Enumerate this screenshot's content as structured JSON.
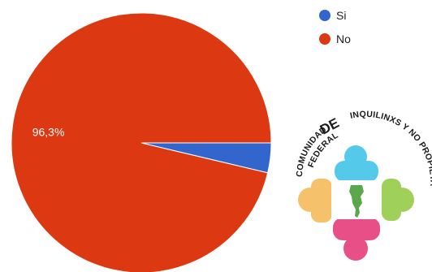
{
  "chart_data": {
    "type": "pie",
    "categories": [
      "Si",
      "No"
    ],
    "values": [
      3.7,
      96.3
    ],
    "colors": [
      "#3366cc",
      "#dc3912"
    ],
    "data_labels": [
      "",
      "96,3%"
    ],
    "legend": {
      "position": "top-right",
      "entries": [
        "Si",
        "No"
      ]
    }
  },
  "logo": {
    "arc_text_small": "COMUNIDAD",
    "arc_text_small2": "FEDERAL",
    "arc_text_big": "DE",
    "arc_text_main": "INQUILINXS Y NO PROPIETARIXS",
    "colors": {
      "top": "#55c9ea",
      "right": "#9fd05a",
      "bottom": "#e94f87",
      "left": "#f5c26b",
      "map": "#5aa84b"
    }
  }
}
